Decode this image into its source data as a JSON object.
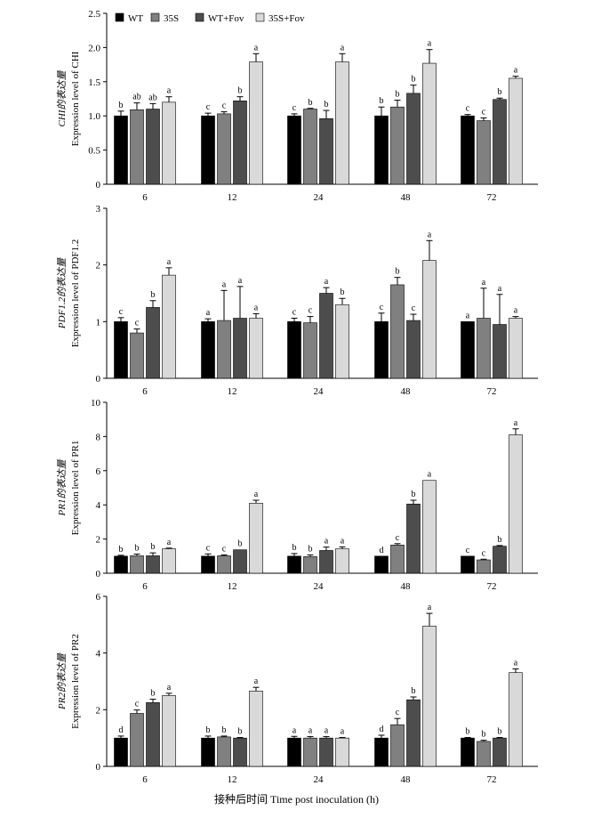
{
  "figure": {
    "legend": [
      {
        "label": "WT",
        "color": "#000000"
      },
      {
        "label": "35S",
        "color": "#808080"
      },
      {
        "label": "WT+Fov",
        "color": "#4d4d4d"
      },
      {
        "label": "35S+Fov",
        "color": "#d9d9d9"
      }
    ],
    "xlabel": "接种后时间 Time post inoculation (h)"
  },
  "chart_data": [
    {
      "type": "bar",
      "ylabel_cn": "CHI的表达量",
      "ylabel_en": "Expression level of CHI",
      "categories": [
        "6",
        "12",
        "24",
        "48",
        "72"
      ],
      "ylim": [
        0,
        2.5
      ],
      "yticks": [
        "0",
        "0.5",
        "1.0",
        "1.5",
        "2.0",
        "2.5"
      ],
      "series": [
        {
          "name": "WT",
          "values": [
            1.0,
            1.0,
            1.0,
            1.0,
            1.0
          ],
          "errors": [
            0.07,
            0.04,
            0.03,
            0.13,
            0.02
          ],
          "letters": [
            "b",
            "c",
            "c",
            "b",
            "c"
          ]
        },
        {
          "name": "35S",
          "values": [
            1.09,
            1.03,
            1.1,
            1.13,
            0.93
          ],
          "errors": [
            0.1,
            0.03,
            0.01,
            0.1,
            0.04
          ],
          "letters": [
            "ab",
            "c",
            "b",
            "b",
            "c"
          ]
        },
        {
          "name": "WT+Fov",
          "values": [
            1.1,
            1.22,
            0.96,
            1.33,
            1.24
          ],
          "errors": [
            0.08,
            0.06,
            0.12,
            0.12,
            0.02
          ],
          "letters": [
            "ab",
            "b",
            "b",
            "b",
            "b"
          ]
        },
        {
          "name": "35S+Fov",
          "values": [
            1.2,
            1.79,
            1.79,
            1.77,
            1.55
          ],
          "errors": [
            0.08,
            0.12,
            0.12,
            0.2,
            0.03
          ],
          "letters": [
            "a",
            "a",
            "a",
            "a",
            "a"
          ]
        }
      ]
    },
    {
      "type": "bar",
      "ylabel_cn": "PDF1.2的表达量",
      "ylabel_en": "Expression level of PDF1.2",
      "categories": [
        "6",
        "12",
        "24",
        "48",
        "72"
      ],
      "ylim": [
        0,
        3
      ],
      "yticks": [
        "0",
        "1",
        "2",
        "3"
      ],
      "series": [
        {
          "name": "WT",
          "values": [
            1.0,
            1.0,
            1.0,
            1.0,
            1.0
          ],
          "errors": [
            0.07,
            0.05,
            0.06,
            0.15,
            0.0
          ],
          "letters": [
            "c",
            "a",
            "c",
            "c",
            "a"
          ]
        },
        {
          "name": "35S",
          "values": [
            0.8,
            1.02,
            0.98,
            1.65,
            1.06
          ],
          "errors": [
            0.07,
            0.53,
            0.11,
            0.13,
            0.53
          ],
          "letters": [
            "c",
            "a",
            "c",
            "b",
            "a"
          ]
        },
        {
          "name": "WT+Fov",
          "values": [
            1.25,
            1.06,
            1.5,
            1.02,
            0.95
          ],
          "errors": [
            0.12,
            0.56,
            0.1,
            0.11,
            0.53
          ],
          "letters": [
            "b",
            "a",
            "a",
            "c",
            "a"
          ]
        },
        {
          "name": "35S+Fov",
          "values": [
            1.82,
            1.06,
            1.3,
            2.08,
            1.06
          ],
          "errors": [
            0.13,
            0.08,
            0.11,
            0.35,
            0.03
          ],
          "letters": [
            "a",
            "a",
            "b",
            "a",
            "a"
          ]
        }
      ]
    },
    {
      "type": "bar",
      "ylabel_cn": "PR1的表达量",
      "ylabel_en": "Expression level of PR1",
      "categories": [
        "6",
        "12",
        "24",
        "48",
        "72"
      ],
      "ylim": [
        0,
        10
      ],
      "yticks": [
        "0",
        "2",
        "4",
        "6",
        "8",
        "10"
      ],
      "series": [
        {
          "name": "WT",
          "values": [
            1.0,
            1.0,
            1.0,
            1.0,
            1.0
          ],
          "errors": [
            0.05,
            0.13,
            0.15,
            0.0,
            0.0
          ],
          "letters": [
            "b",
            "c",
            "b",
            "d",
            "c"
          ]
        },
        {
          "name": "35S",
          "values": [
            1.02,
            1.02,
            0.97,
            1.65,
            0.78
          ],
          "errors": [
            0.1,
            0.05,
            0.1,
            0.08,
            0.04
          ],
          "letters": [
            "b",
            "c",
            "b",
            "c",
            "c"
          ]
        },
        {
          "name": "WT+Fov",
          "values": [
            1.02,
            1.37,
            1.33,
            4.05,
            1.58
          ],
          "errors": [
            0.17,
            0.0,
            0.2,
            0.22,
            0.04
          ],
          "letters": [
            "b",
            "b",
            "a",
            "b",
            "b"
          ]
        },
        {
          "name": "35S+Fov",
          "values": [
            1.43,
            4.1,
            1.43,
            5.43,
            8.1
          ],
          "errors": [
            0.04,
            0.17,
            0.11,
            0.0,
            0.35
          ],
          "letters": [
            "a",
            "a",
            "a",
            "a",
            "a"
          ]
        }
      ]
    },
    {
      "type": "bar",
      "ylabel_cn": "PR2的表达量",
      "ylabel_en": "Expression level of PR2",
      "categories": [
        "6",
        "12",
        "24",
        "48",
        "72"
      ],
      "ylim": [
        0,
        6
      ],
      "yticks": [
        "0",
        "2",
        "4",
        "6"
      ],
      "series": [
        {
          "name": "WT",
          "values": [
            1.0,
            1.0,
            1.0,
            1.0,
            1.0
          ],
          "errors": [
            0.07,
            0.07,
            0.06,
            0.1,
            0.02
          ],
          "letters": [
            "d",
            "b",
            "a",
            "d",
            "b"
          ]
        },
        {
          "name": "35S",
          "values": [
            1.87,
            1.04,
            1.0,
            1.47,
            0.88
          ],
          "errors": [
            0.12,
            0.03,
            0.05,
            0.22,
            0.04
          ],
          "letters": [
            "c",
            "b",
            "a",
            "c",
            "b"
          ]
        },
        {
          "name": "WT+Fov",
          "values": [
            2.25,
            1.0,
            1.0,
            2.35,
            1.0
          ],
          "errors": [
            0.12,
            0.02,
            0.05,
            0.1,
            0.02
          ],
          "letters": [
            "b",
            "b",
            "a",
            "b",
            "b"
          ]
        },
        {
          "name": "35S+Fov",
          "values": [
            2.5,
            2.66,
            1.0,
            4.95,
            3.31
          ],
          "errors": [
            0.08,
            0.13,
            0.02,
            0.45,
            0.13
          ],
          "letters": [
            "a",
            "a",
            "a",
            "a",
            "a"
          ]
        }
      ]
    }
  ]
}
